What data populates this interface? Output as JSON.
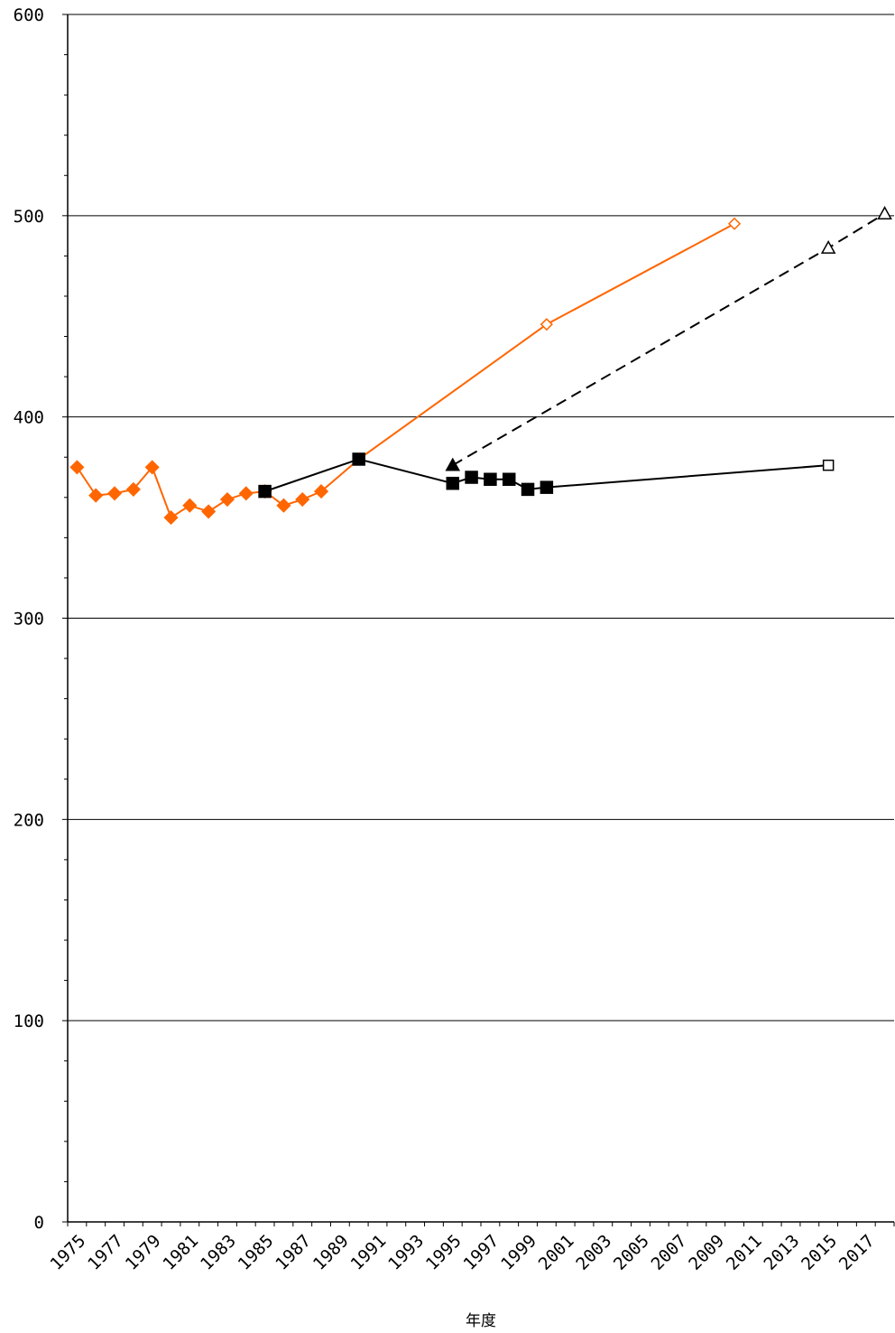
{
  "chart_data": {
    "type": "line",
    "title": "",
    "xlabel": "年度",
    "ylabel": "",
    "xlim": [
      1975,
      2019
    ],
    "ylim": [
      0,
      600
    ],
    "y_ticks": [
      0,
      100,
      200,
      300,
      400,
      500,
      600
    ],
    "x_ticks": [
      1975,
      1977,
      1979,
      1981,
      1983,
      1985,
      1987,
      1989,
      1991,
      1993,
      1995,
      1997,
      1999,
      2001,
      2003,
      2005,
      2007,
      2009,
      2011,
      2013,
      2015,
      2017
    ],
    "grid": "horizontal",
    "legend": "none",
    "series": [
      {
        "color": "#ff6600",
        "line": "solid",
        "points": [
          {
            "x": 1975.5,
            "y": 375,
            "marker": "diamond-filled"
          },
          {
            "x": 1976.5,
            "y": 361,
            "marker": "diamond-filled"
          },
          {
            "x": 1977.5,
            "y": 362,
            "marker": "diamond-filled"
          },
          {
            "x": 1978.5,
            "y": 364,
            "marker": "diamond-filled"
          },
          {
            "x": 1979.5,
            "y": 375,
            "marker": "diamond-filled"
          },
          {
            "x": 1980.5,
            "y": 350,
            "marker": "diamond-filled"
          },
          {
            "x": 1981.5,
            "y": 356,
            "marker": "diamond-filled"
          },
          {
            "x": 1982.5,
            "y": 353,
            "marker": "diamond-filled"
          },
          {
            "x": 1983.5,
            "y": 359,
            "marker": "diamond-filled"
          },
          {
            "x": 1984.5,
            "y": 362,
            "marker": "diamond-filled"
          },
          {
            "x": 1985.5,
            "y": 363,
            "marker": "diamond-filled"
          },
          {
            "x": 1986.5,
            "y": 356,
            "marker": "diamond-filled"
          },
          {
            "x": 1987.5,
            "y": 359,
            "marker": "diamond-filled"
          },
          {
            "x": 1988.5,
            "y": 363,
            "marker": "diamond-filled"
          },
          {
            "x": 1990.5,
            "y": 379,
            "marker": "none"
          },
          {
            "x": 2000.5,
            "y": 446,
            "marker": "diamond-open"
          },
          {
            "x": 2010.5,
            "y": 496,
            "marker": "diamond-open"
          }
        ]
      },
      {
        "color": "#000000",
        "line": "solid",
        "points": [
          {
            "x": 1985.5,
            "y": 363,
            "marker": "square-filled"
          },
          {
            "x": 1990.5,
            "y": 379,
            "marker": "square-filled"
          },
          {
            "x": 1995.5,
            "y": 367,
            "marker": "square-filled"
          },
          {
            "x": 1996.5,
            "y": 370,
            "marker": "square-filled"
          },
          {
            "x": 1997.5,
            "y": 369,
            "marker": "square-filled"
          },
          {
            "x": 1998.5,
            "y": 369,
            "marker": "square-filled"
          },
          {
            "x": 1999.5,
            "y": 364,
            "marker": "square-filled"
          },
          {
            "x": 2000.5,
            "y": 365,
            "marker": "square-filled"
          },
          {
            "x": 2015.5,
            "y": 376,
            "marker": "square-open"
          }
        ]
      },
      {
        "color": "#000000",
        "line": "dashed",
        "points": [
          {
            "x": 1995.5,
            "y": 376,
            "marker": "triangle-filled"
          },
          {
            "x": 2015.5,
            "y": 484,
            "marker": "triangle-open"
          },
          {
            "x": 2018.5,
            "y": 501,
            "marker": "triangle-open"
          }
        ]
      }
    ]
  }
}
